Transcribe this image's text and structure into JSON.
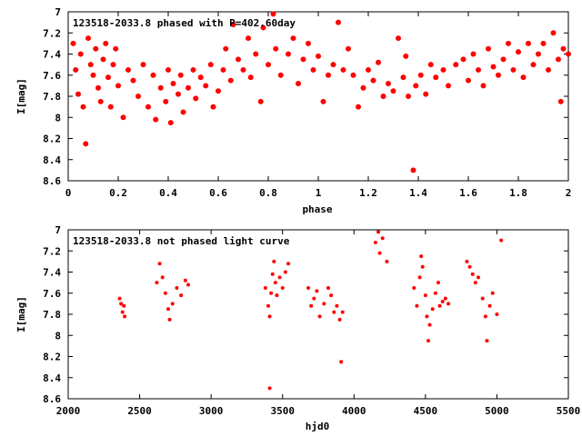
{
  "colors": {
    "points": "#ff0000",
    "axes": "#000000",
    "background": "#ffffff"
  },
  "chart_data": [
    {
      "type": "scatter",
      "title": "123518-2033.8 phased with P=402.60day",
      "xlabel": "phase",
      "ylabel": "I[mag]",
      "xlim": [
        0,
        2
      ],
      "ylim": [
        7,
        8.6
      ],
      "y_inverted": true,
      "x_ticks": [
        "0",
        "0.2",
        "0.4",
        "0.6",
        "0.8",
        "1",
        "1.2",
        "1.4",
        "1.6",
        "1.8",
        "2"
      ],
      "y_ticks": [
        "7",
        "7.2",
        "7.4",
        "7.6",
        "7.8",
        "8",
        "8.2",
        "8.4",
        "8.6"
      ],
      "grid": false,
      "points": [
        [
          0.02,
          7.3
        ],
        [
          0.03,
          7.55
        ],
        [
          0.04,
          7.78
        ],
        [
          0.05,
          7.4
        ],
        [
          0.06,
          7.9
        ],
        [
          0.07,
          8.25
        ],
        [
          0.08,
          7.25
        ],
        [
          0.09,
          7.5
        ],
        [
          0.1,
          7.6
        ],
        [
          0.11,
          7.35
        ],
        [
          0.12,
          7.72
        ],
        [
          0.13,
          7.85
        ],
        [
          0.14,
          7.45
        ],
        [
          0.15,
          7.3
        ],
        [
          0.16,
          7.62
        ],
        [
          0.17,
          7.9
        ],
        [
          0.18,
          7.5
        ],
        [
          0.19,
          7.35
        ],
        [
          0.2,
          7.7
        ],
        [
          0.22,
          8.0
        ],
        [
          0.24,
          7.55
        ],
        [
          0.26,
          7.65
        ],
        [
          0.28,
          7.8
        ],
        [
          0.3,
          7.5
        ],
        [
          0.32,
          7.9
        ],
        [
          0.34,
          7.6
        ],
        [
          0.35,
          8.02
        ],
        [
          0.37,
          7.72
        ],
        [
          0.39,
          7.85
        ],
        [
          0.4,
          7.55
        ],
        [
          0.41,
          8.05
        ],
        [
          0.42,
          7.68
        ],
        [
          0.44,
          7.78
        ],
        [
          0.45,
          7.6
        ],
        [
          0.46,
          7.95
        ],
        [
          0.48,
          7.72
        ],
        [
          0.5,
          7.55
        ],
        [
          0.51,
          7.82
        ],
        [
          0.53,
          7.62
        ],
        [
          0.55,
          7.7
        ],
        [
          0.57,
          7.5
        ],
        [
          0.58,
          7.9
        ],
        [
          0.6,
          7.75
        ],
        [
          0.62,
          7.55
        ],
        [
          0.63,
          7.35
        ],
        [
          0.65,
          7.65
        ],
        [
          0.66,
          7.12
        ],
        [
          0.68,
          7.45
        ],
        [
          0.7,
          7.55
        ],
        [
          0.72,
          7.25
        ],
        [
          0.73,
          7.62
        ],
        [
          0.75,
          7.4
        ],
        [
          0.77,
          7.85
        ],
        [
          0.78,
          7.15
        ],
        [
          0.8,
          7.5
        ],
        [
          0.82,
          7.02
        ],
        [
          0.83,
          7.35
        ],
        [
          0.85,
          7.6
        ],
        [
          0.88,
          7.4
        ],
        [
          0.9,
          7.25
        ],
        [
          0.92,
          7.68
        ],
        [
          0.94,
          7.45
        ],
        [
          0.96,
          7.3
        ],
        [
          0.98,
          7.55
        ],
        [
          1.0,
          7.42
        ],
        [
          1.02,
          7.85
        ],
        [
          1.04,
          7.6
        ],
        [
          1.06,
          7.5
        ],
        [
          1.08,
          7.1
        ],
        [
          1.1,
          7.55
        ],
        [
          1.12,
          7.35
        ],
        [
          1.14,
          7.6
        ],
        [
          1.16,
          7.9
        ],
        [
          1.18,
          7.72
        ],
        [
          1.2,
          7.55
        ],
        [
          1.22,
          7.65
        ],
        [
          1.24,
          7.48
        ],
        [
          1.26,
          7.8
        ],
        [
          1.28,
          7.68
        ],
        [
          1.3,
          7.75
        ],
        [
          1.32,
          7.25
        ],
        [
          1.34,
          7.62
        ],
        [
          1.35,
          7.42
        ],
        [
          1.36,
          7.8
        ],
        [
          1.38,
          8.5
        ],
        [
          1.39,
          7.7
        ],
        [
          1.41,
          7.6
        ],
        [
          1.43,
          7.78
        ],
        [
          1.45,
          7.5
        ],
        [
          1.47,
          7.62
        ],
        [
          1.5,
          7.55
        ],
        [
          1.52,
          7.7
        ],
        [
          1.55,
          7.5
        ],
        [
          1.58,
          7.45
        ],
        [
          1.6,
          7.65
        ],
        [
          1.62,
          7.4
        ],
        [
          1.64,
          7.55
        ],
        [
          1.66,
          7.7
        ],
        [
          1.68,
          7.35
        ],
        [
          1.7,
          7.52
        ],
        [
          1.72,
          7.6
        ],
        [
          1.74,
          7.45
        ],
        [
          1.76,
          7.3
        ],
        [
          1.78,
          7.55
        ],
        [
          1.8,
          7.38
        ],
        [
          1.82,
          7.62
        ],
        [
          1.84,
          7.3
        ],
        [
          1.86,
          7.5
        ],
        [
          1.88,
          7.4
        ],
        [
          1.9,
          7.3
        ],
        [
          1.92,
          7.55
        ],
        [
          1.94,
          7.2
        ],
        [
          1.96,
          7.45
        ],
        [
          1.97,
          7.85
        ],
        [
          1.98,
          7.35
        ],
        [
          2.0,
          7.4
        ]
      ]
    },
    {
      "type": "scatter",
      "title": "123518-2033.8 not phased light curve",
      "xlabel": "hjd0",
      "ylabel": "I[mag]",
      "xlim": [
        2000,
        5500
      ],
      "ylim": [
        7,
        8.6
      ],
      "y_inverted": true,
      "x_ticks": [
        "2000",
        "2500",
        "3000",
        "3500",
        "4000",
        "4500",
        "5000",
        "5500"
      ],
      "y_ticks": [
        "7",
        "7.2",
        "7.4",
        "7.6",
        "7.8",
        "8",
        "8.2",
        "8.4",
        "8.6"
      ],
      "grid": false,
      "points": [
        [
          2360,
          7.65
        ],
        [
          2370,
          7.7
        ],
        [
          2380,
          7.78
        ],
        [
          2390,
          7.72
        ],
        [
          2395,
          7.82
        ],
        [
          2620,
          7.5
        ],
        [
          2640,
          7.32
        ],
        [
          2660,
          7.45
        ],
        [
          2680,
          7.6
        ],
        [
          2700,
          7.75
        ],
        [
          2710,
          7.85
        ],
        [
          2730,
          7.7
        ],
        [
          2760,
          7.55
        ],
        [
          2790,
          7.62
        ],
        [
          2820,
          7.48
        ],
        [
          2840,
          7.52
        ],
        [
          3380,
          7.55
        ],
        [
          3400,
          7.72
        ],
        [
          3410,
          7.82
        ],
        [
          3420,
          7.6
        ],
        [
          3430,
          7.42
        ],
        [
          3440,
          7.3
        ],
        [
          3450,
          7.5
        ],
        [
          3460,
          7.62
        ],
        [
          3480,
          7.45
        ],
        [
          3500,
          7.55
        ],
        [
          3520,
          7.4
        ],
        [
          3540,
          7.32
        ],
        [
          3410,
          8.5
        ],
        [
          3680,
          7.55
        ],
        [
          3700,
          7.72
        ],
        [
          3720,
          7.65
        ],
        [
          3740,
          7.58
        ],
        [
          3760,
          7.82
        ],
        [
          3790,
          7.7
        ],
        [
          3820,
          7.55
        ],
        [
          3840,
          7.62
        ],
        [
          3860,
          7.78
        ],
        [
          3880,
          7.72
        ],
        [
          3900,
          7.85
        ],
        [
          3910,
          8.25
        ],
        [
          3920,
          7.78
        ],
        [
          4150,
          7.12
        ],
        [
          4170,
          7.02
        ],
        [
          4180,
          7.22
        ],
        [
          4200,
          7.08
        ],
        [
          4230,
          7.3
        ],
        [
          4420,
          7.55
        ],
        [
          4440,
          7.72
        ],
        [
          4460,
          7.45
        ],
        [
          4470,
          7.25
        ],
        [
          4480,
          7.35
        ],
        [
          4500,
          7.62
        ],
        [
          4510,
          7.82
        ],
        [
          4520,
          8.05
        ],
        [
          4530,
          7.9
        ],
        [
          4550,
          7.75
        ],
        [
          4570,
          7.6
        ],
        [
          4590,
          7.5
        ],
        [
          4600,
          7.72
        ],
        [
          4620,
          7.68
        ],
        [
          4640,
          7.65
        ],
        [
          4660,
          7.7
        ],
        [
          4790,
          7.3
        ],
        [
          4810,
          7.35
        ],
        [
          4830,
          7.42
        ],
        [
          4850,
          7.5
        ],
        [
          4870,
          7.45
        ],
        [
          4900,
          7.65
        ],
        [
          4920,
          7.82
        ],
        [
          4930,
          8.05
        ],
        [
          4950,
          7.72
        ],
        [
          4970,
          7.6
        ],
        [
          5000,
          7.8
        ],
        [
          5030,
          7.1
        ]
      ]
    }
  ]
}
